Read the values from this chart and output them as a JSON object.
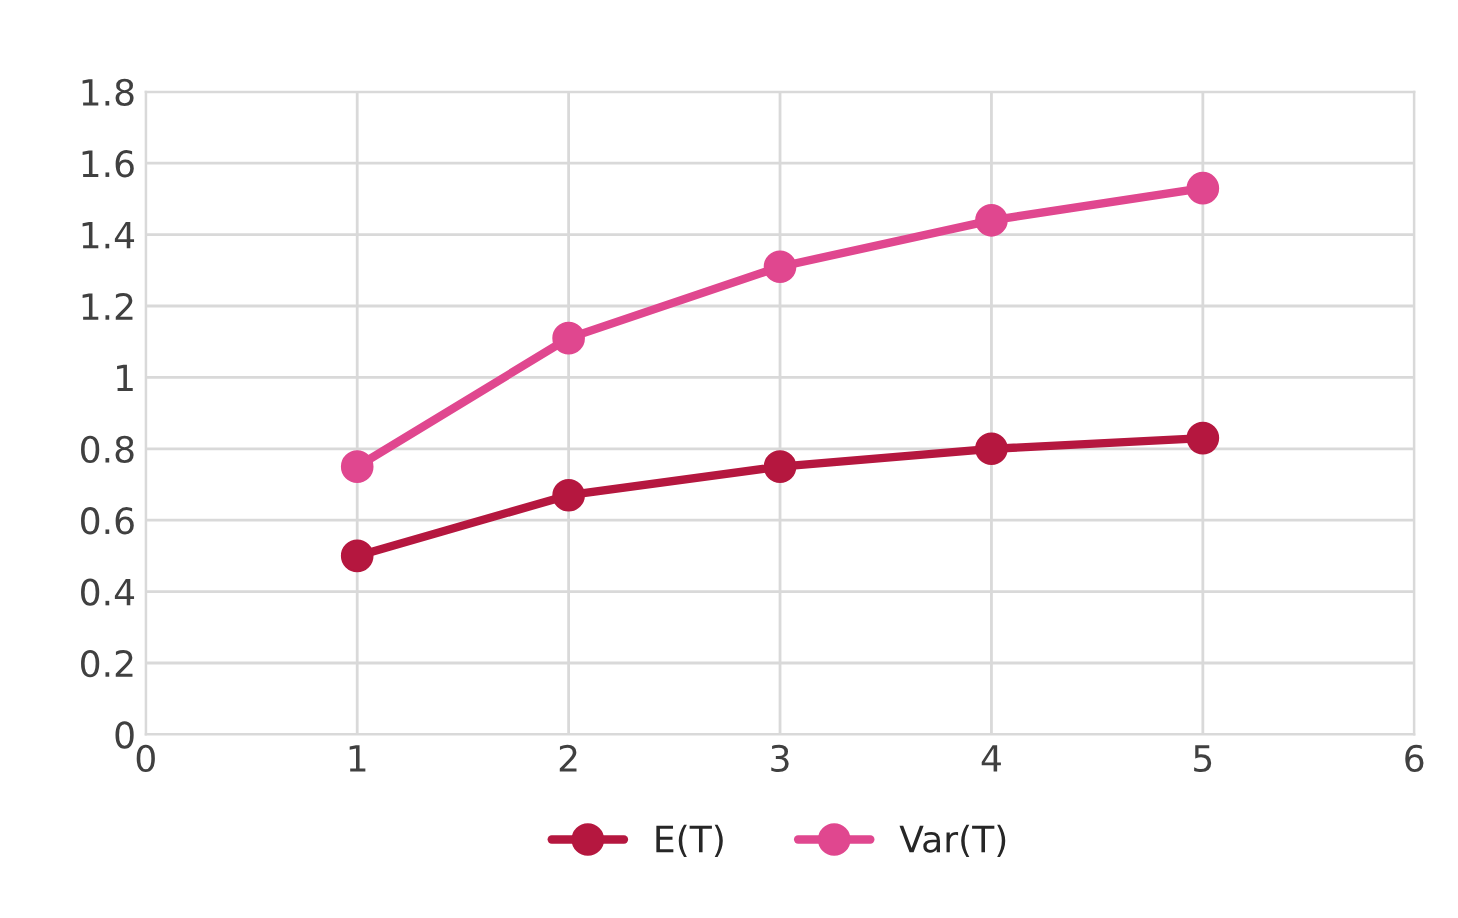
{
  "chart_data": {
    "type": "line",
    "x": [
      1,
      2,
      3,
      4,
      5
    ],
    "series": [
      {
        "name": "E(T)",
        "color": "#b5173f",
        "values": [
          0.5,
          0.67,
          0.75,
          0.8,
          0.83
        ]
      },
      {
        "name": "Var(T)",
        "color": "#e0478f",
        "values": [
          0.75,
          1.11,
          1.31,
          1.44,
          1.53
        ]
      }
    ],
    "xlim": [
      0,
      6
    ],
    "xticks": [
      0,
      1,
      2,
      3,
      4,
      5,
      6
    ],
    "ylim": [
      0,
      1.8
    ],
    "yticks": [
      0,
      0.2,
      0.4,
      0.6,
      0.8,
      1,
      1.2,
      1.4,
      1.6,
      1.8
    ],
    "grid": true,
    "legend": "bottom",
    "marker": "circle",
    "line_style": "solid"
  }
}
